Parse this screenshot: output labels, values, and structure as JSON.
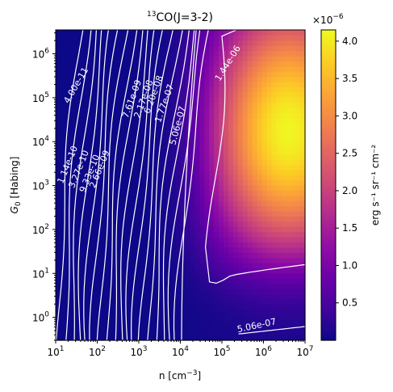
{
  "chart_data": {
    "type": "heatmap",
    "title": "13CO(J=3-2)",
    "title_parts": {
      "sup": "13",
      "main": "CO(J=3-2)"
    },
    "xlabel": "n [cm",
    "xlabel_sup": "−3",
    "xlabel_close": "]",
    "ylabel": "G",
    "ylabel_sub": "0",
    "ylabel_rest": " [Habing]",
    "x_scale": "log",
    "y_scale": "log",
    "xlim": [
      10,
      10000000
    ],
    "ylim": [
      0.3,
      3500000
    ],
    "x_ticks": [
      {
        "mant": "10",
        "exp": "1",
        "value": 10
      },
      {
        "mant": "10",
        "exp": "2",
        "value": 100
      },
      {
        "mant": "10",
        "exp": "3",
        "value": 1000
      },
      {
        "mant": "10",
        "exp": "4",
        "value": 10000
      },
      {
        "mant": "10",
        "exp": "5",
        "value": 100000
      },
      {
        "mant": "10",
        "exp": "6",
        "value": 1000000
      },
      {
        "mant": "10",
        "exp": "7",
        "value": 10000000
      }
    ],
    "y_ticks": [
      {
        "mant": "10",
        "exp": "0",
        "value": 1
      },
      {
        "mant": "10",
        "exp": "1",
        "value": 10
      },
      {
        "mant": "10",
        "exp": "2",
        "value": 100
      },
      {
        "mant": "10",
        "exp": "3",
        "value": 1000
      },
      {
        "mant": "10",
        "exp": "4",
        "value": 10000
      },
      {
        "mant": "10",
        "exp": "5",
        "value": 100000
      },
      {
        "mant": "10",
        "exp": "6",
        "value": 1000000
      }
    ],
    "colormap": "plasma",
    "colorbar": {
      "label": "erg s⁻¹ sr⁻¹ cm⁻²",
      "multiplier": "×10",
      "multiplier_exp": "−6",
      "range": [
        0.0,
        4.15
      ],
      "ticks": [
        "0.5",
        "1.0",
        "1.5",
        "2.0",
        "2.5",
        "3.0",
        "3.5",
        "4.0"
      ],
      "tick_values": [
        0.5,
        1.0,
        1.5,
        2.0,
        2.5,
        3.0,
        3.5,
        4.0
      ]
    },
    "peak": {
      "log_n": 6.6,
      "log_g0": 4.25,
      "value": 4.1e-06
    },
    "contour_labels": [
      "4.00e-11",
      "1.14e-10",
      "3.27e-10",
      "9.33e-10",
      "2.66e-09",
      "7.61e-09",
      "2.17e-08",
      "6.20e-08",
      "1.77e-07",
      "5.06e-07",
      "1.44e-06",
      "5.06e-07"
    ]
  }
}
